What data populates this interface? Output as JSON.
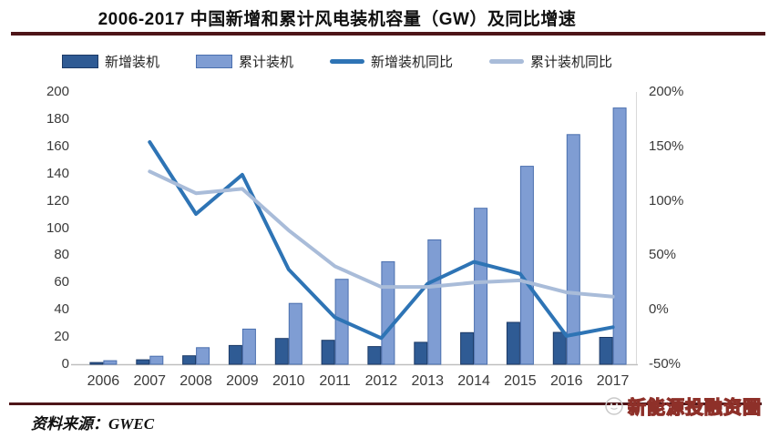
{
  "title": "2006-2017 中国新增和累计风电装机容量（GW）及同比增速",
  "footer": {
    "source": "资料来源：GWEC",
    "watermark": "新能源投融资圈"
  },
  "colors": {
    "rule_maroon": "#4e1518",
    "baseline_gray": "#bfbfbf",
    "right_axis_gray": "#d9d9d9",
    "watermark_red": "#8e3029"
  },
  "chart_data": {
    "type": "bar",
    "subtype": "combo-bar-line-dual-axis",
    "title": "2006-2017 中国新增和累计风电装机容量（GW）及同比增速",
    "categories": [
      "2006",
      "2007",
      "2008",
      "2009",
      "2010",
      "2011",
      "2012",
      "2013",
      "2014",
      "2015",
      "2016",
      "2017"
    ],
    "series": [
      {
        "name": "新增装机",
        "type": "bar",
        "axis": "left",
        "color": "#2f5b94",
        "border": "#1c3a66",
        "values": [
          1.3,
          3.3,
          6.2,
          13.8,
          18.9,
          17.6,
          13.0,
          16.1,
          23.2,
          30.8,
          23.4,
          19.7
        ]
      },
      {
        "name": "累计装机",
        "type": "bar",
        "axis": "left",
        "color": "#7f9dd3",
        "border": "#4a6fae",
        "values": [
          2.6,
          5.9,
          12.2,
          25.8,
          44.7,
          62.4,
          75.3,
          91.4,
          114.6,
          145.4,
          168.7,
          188.2
        ]
      },
      {
        "name": "新增装机同比",
        "type": "line",
        "axis": "right",
        "color": "#2e74b5",
        "values": [
          null,
          154,
          88,
          124,
          37,
          -7,
          -26,
          24,
          44,
          33,
          -24,
          -16
        ]
      },
      {
        "name": "累计装机同比",
        "type": "line",
        "axis": "right",
        "color": "#a9bcd9",
        "values": [
          null,
          127,
          107,
          111,
          73,
          40,
          21,
          21,
          25,
          27,
          16,
          12
        ]
      }
    ],
    "left_axis": {
      "min": 0,
      "max": 200,
      "step": 20,
      "tick_labels": [
        "200",
        "180",
        "160",
        "140",
        "120",
        "100",
        "80",
        "60",
        "40",
        "20",
        "0"
      ]
    },
    "right_axis": {
      "min": -50,
      "max": 200,
      "step": 50,
      "tick_labels": [
        "200%",
        "150%",
        "100%",
        "50%",
        "0%",
        "-50%"
      ]
    },
    "xlabel": "",
    "ylabel": "",
    "grid": false,
    "legend_position": "top"
  }
}
